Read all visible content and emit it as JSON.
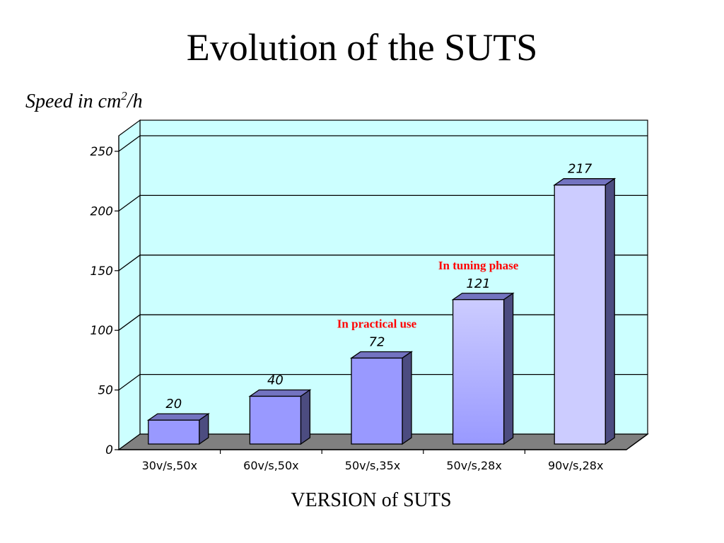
{
  "title": "Evolution of the SUTS",
  "ylabel_main": "Speed in cm",
  "ylabel_sup": "2",
  "ylabel_tail": "/h",
  "xlabel": "VERSION of SUTS",
  "colors": {
    "wall": "#ccffff",
    "floor": "#808080",
    "bar_front": "#9999ff",
    "bar_side": "#4c4c80",
    "bar_top": "#7373c0",
    "bar_light_front": "#ccccff",
    "note_color": "#ff0000"
  },
  "chart_data": {
    "type": "bar",
    "title": "Evolution of the SUTS",
    "xlabel": "VERSION of SUTS",
    "ylabel": "Speed in cm2/h",
    "categories": [
      "30v/s,50x",
      "60v/s,50x",
      "50v/s,35x",
      "50v/s,28x",
      "90v/s,28x"
    ],
    "values": [
      20,
      40,
      72,
      121,
      217
    ],
    "value_labels": [
      "20",
      "40",
      "72",
      "121",
      "217"
    ],
    "ylim": [
      0,
      250
    ],
    "yticks": [
      "0",
      "50",
      "100",
      "150",
      "200",
      "250"
    ],
    "grid": true,
    "annotations": [
      {
        "text": "In practical use",
        "category_index": 2
      },
      {
        "text": "In tuning phase",
        "category_index": 3
      }
    ]
  }
}
